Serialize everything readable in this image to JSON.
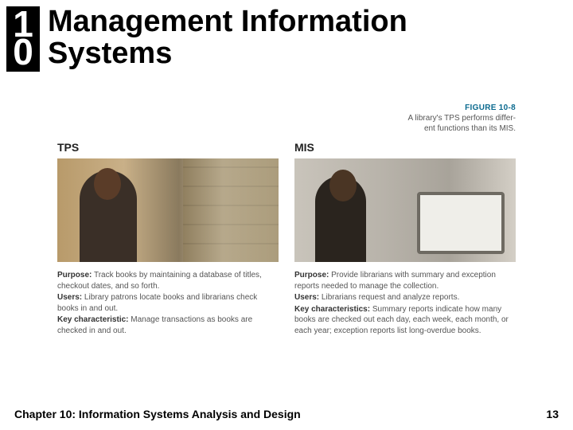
{
  "header": {
    "chapter_digit1": "1",
    "chapter_digit2": "0",
    "title_line1": "Management Information",
    "title_line2": "Systems"
  },
  "figure": {
    "number": "FIGURE 10-8",
    "caption_line1": "A library's TPS performs differ-",
    "caption_line2": "ent functions than its MIS."
  },
  "tps": {
    "heading": "TPS",
    "purpose_label": "Purpose:",
    "purpose": "Track books by maintaining a database of titles, checkout dates, and so forth.",
    "users_label": "Users:",
    "users": "Library patrons locate books and librarians check books in and out.",
    "key_label": "Key characteristic:",
    "key": "Manage transactions as books are checked in and out."
  },
  "mis": {
    "heading": "MIS",
    "purpose_label": "Purpose:",
    "purpose": "Provide librarians with summary and exception reports needed to manage the collection.",
    "users_label": "Users:",
    "users": "Librarians request and analyze reports.",
    "key_label": "Key characteristics:",
    "key": "Summary reports indicate how many books are checked out each day, each week, each month, or each year; exception reports list long-overdue books."
  },
  "footer": {
    "chapter_text": "Chapter 10: Information Systems Analysis and Design",
    "page_number": "13"
  }
}
